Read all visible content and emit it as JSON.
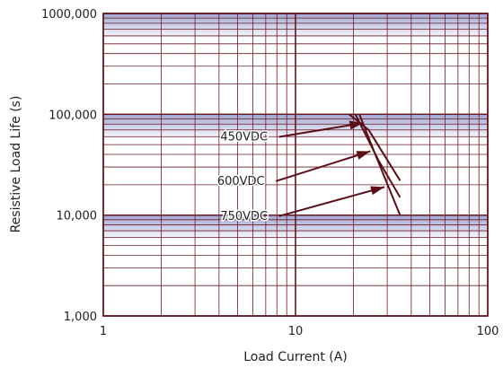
{
  "chart_data": {
    "type": "line",
    "title": "",
    "xlabel": "Load Current (A)",
    "ylabel": "Resistive Load Life (s)",
    "xscale": "log",
    "yscale": "log",
    "xlim": [
      1,
      100
    ],
    "ylim": [
      1000,
      1000000
    ],
    "xticks": [
      1,
      10,
      100
    ],
    "xtick_labels": [
      "1",
      "10",
      "100"
    ],
    "yticks": [
      1000,
      10000,
      100000,
      1000000
    ],
    "ytick_labels": [
      "1,000",
      "10,000",
      "100,000",
      "1000,000"
    ],
    "grid": true,
    "series": [
      {
        "name": "450VDC",
        "x": [
          19,
          24,
          35
        ],
        "y": [
          100000,
          70000,
          22000
        ]
      },
      {
        "name": "600VDC",
        "x": [
          20.5,
          27,
          35
        ],
        "y": [
          100000,
          35000,
          15000
        ]
      },
      {
        "name": "750VDC",
        "x": [
          21.5,
          26,
          35
        ],
        "y": [
          100000,
          40000,
          10000
        ]
      }
    ],
    "annotations": [
      {
        "text": "450VDC",
        "x_text": 5.4,
        "y_text": 55000,
        "x_arrow": 22.5,
        "y_arrow": 82000
      },
      {
        "text": "600VDC",
        "x_text": 5.2,
        "y_text": 20000,
        "x_arrow": 24.5,
        "y_arrow": 43000
      },
      {
        "text": "750VDC",
        "x_text": 5.4,
        "y_text": 9000,
        "x_arrow": 29,
        "y_arrow": 19000
      }
    ],
    "colors": {
      "line": "#5a0f18",
      "grid": "#6b1a24",
      "band": "#8f95c9",
      "text": "#222222"
    }
  }
}
